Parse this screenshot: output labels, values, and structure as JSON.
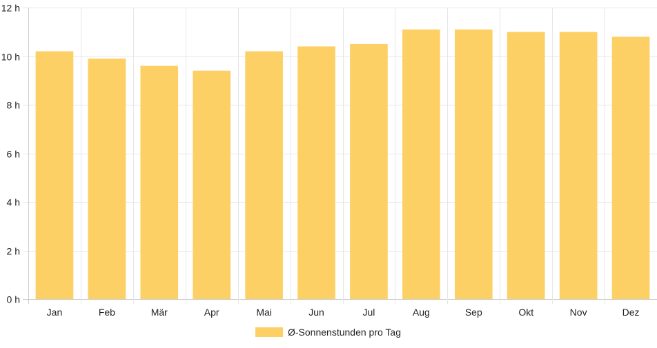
{
  "chart_data": {
    "type": "bar",
    "categories": [
      "Jan",
      "Feb",
      "Mär",
      "Apr",
      "Mai",
      "Jun",
      "Jul",
      "Aug",
      "Sep",
      "Okt",
      "Nov",
      "Dez"
    ],
    "series": [
      {
        "name": "Ø-Sonnenstunden pro Tag",
        "values": [
          10.2,
          9.9,
          9.6,
          9.4,
          10.2,
          10.4,
          10.5,
          11.1,
          11.1,
          11.0,
          11.0,
          10.8
        ]
      }
    ],
    "yticks": [
      "0 h",
      "2 h",
      "4 h",
      "6 h",
      "8 h",
      "10 h",
      "12 h"
    ],
    "ylim": [
      0,
      12
    ],
    "grid": true,
    "legend_position": "bottom",
    "colors": {
      "bar": "#FDD065",
      "grid": "#E6E6E6",
      "axis": "#CCCCCC",
      "text": "#222222"
    }
  }
}
